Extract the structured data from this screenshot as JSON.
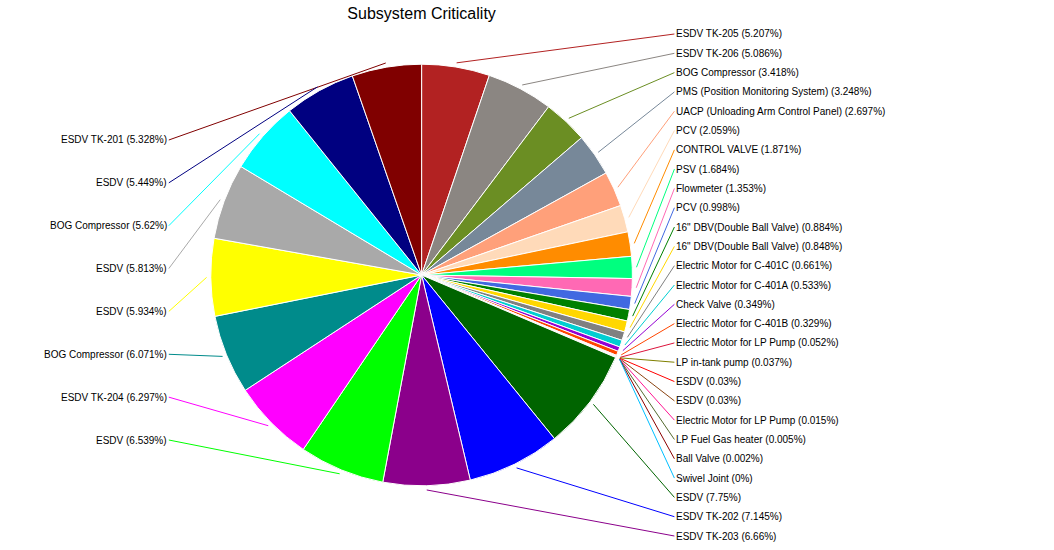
{
  "chart_data": {
    "type": "pie",
    "title": "Subsystem Criticality",
    "categories": [
      "ESDV TK-205 (5.207%)",
      "ESDV TK-206 (5.086%)",
      "BOG Compressor (3.418%)",
      "PMS (Position Monitoring System) (3.248%)",
      "UACP (Unloading Arm Control Panel) (2.697%)",
      "PCV (2.059%)",
      "CONTROL VALVE (1.871%)",
      "PSV (1.684%)",
      "Flowmeter (1.353%)",
      "PCV (0.998%)",
      "16\" DBV(Double Ball Valve) (0.884%)",
      "16\" DBV(Double Ball Valve) (0.848%)",
      "Electric Motor for C-401C (0.661%)",
      "Electric Motor for C-401A (0.533%)",
      "Check Valve (0.349%)",
      "Electric Motor for C-401B (0.329%)",
      "Electric Motor for LP Pump (0.052%)",
      "LP in-tank pump (0.037%)",
      "ESDV (0.03%)",
      "ESDV (0.03%)",
      "Electric Motor for LP Pump (0.015%)",
      "LP Fuel Gas heater (0.005%)",
      "Ball Valve (0.002%)",
      "Swivel Joint (0%)",
      "ESDV (7.75%)",
      "ESDV TK-202 (7.145%)",
      "ESDV TK-203 (6.66%)",
      "ESDV (6.539%)",
      "ESDV TK-204 (6.297%)",
      "BOG Compressor (6.071%)",
      "ESDV (5.934%)",
      "ESDV (5.813%)",
      "BOG Compressor (5.62%)",
      "ESDV (5.449%)",
      "ESDV TK-201 (5.328%)"
    ],
    "values": [
      5.207,
      5.086,
      3.418,
      3.248,
      2.697,
      2.059,
      1.871,
      1.684,
      1.353,
      0.998,
      0.884,
      0.848,
      0.661,
      0.533,
      0.349,
      0.329,
      0.052,
      0.037,
      0.03,
      0.03,
      0.015,
      0.005,
      0.002,
      0.0005,
      7.75,
      7.145,
      6.66,
      6.539,
      6.297,
      6.071,
      5.934,
      5.813,
      5.62,
      5.449,
      5.328
    ],
    "colors": [
      "#B22222",
      "#8B8682",
      "#6B8E23",
      "#778899",
      "#FFA07A",
      "#FFDAB9",
      "#FF8C00",
      "#00FF7F",
      "#FF69B4",
      "#4169E1",
      "#008000",
      "#FFD700",
      "#808080",
      "#00CED1",
      "#9400D3",
      "#FF4500",
      "#DC143C",
      "#808000",
      "#FF0000",
      "#8B4513",
      "#FF1493",
      "#556B2F",
      "#8B0000",
      "#00BFFF",
      "#006400",
      "#0000FF",
      "#8B008B",
      "#00FF00",
      "#FF00FF",
      "#008B8B",
      "#FFFF00",
      "#A9A9A9",
      "#00FFFF",
      "#000080",
      "#800000"
    ]
  }
}
